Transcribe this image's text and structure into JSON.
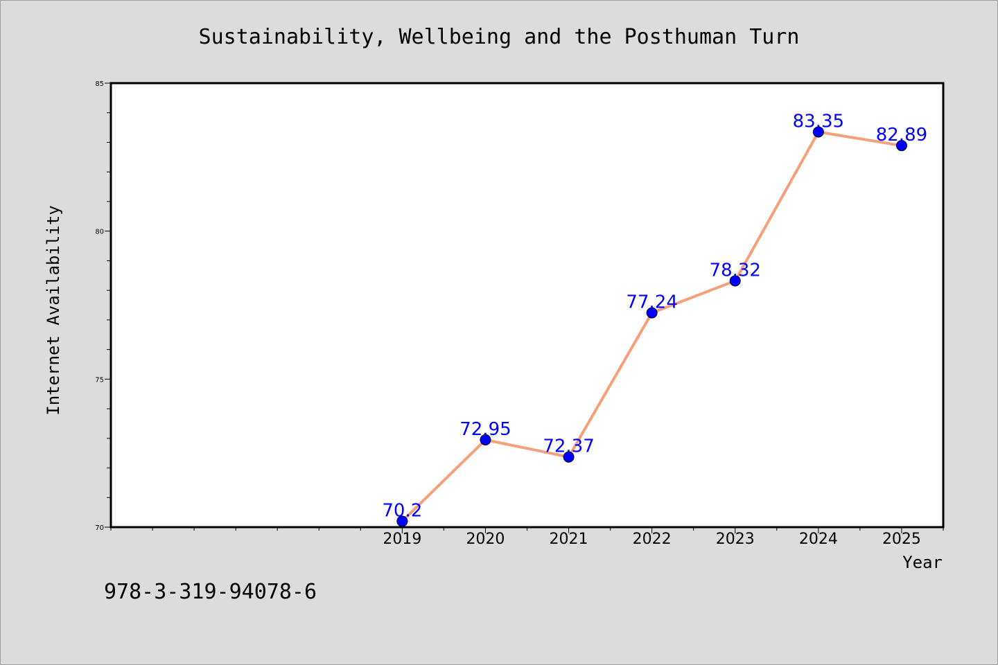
{
  "footer_text": "978-3-319-94078-6",
  "colors": {
    "background": "#dcdcdc",
    "plot_background": "#ffffff",
    "line": "#f5a07a",
    "marker": "#0000ff",
    "data_label": "#0000ff",
    "axis": "#000000"
  },
  "chart_data": {
    "type": "line",
    "title": "Sustainability, Wellbeing and the Posthuman Turn",
    "xlabel": "Year",
    "ylabel": "Internet Availability",
    "x": [
      2019,
      2020,
      2021,
      2022,
      2023,
      2024,
      2025
    ],
    "series": [
      {
        "values": [
          70.2,
          72.95,
          72.37,
          77.24,
          78.32,
          83.35,
          82.89
        ],
        "labels": [
          "70.2",
          "72.95",
          "72.37",
          "77.24",
          "78.32",
          "83.35",
          "82.89"
        ]
      }
    ],
    "xlim": [
      2015.5,
      2025.5
    ],
    "ylim": [
      70,
      85
    ],
    "y_ticks": [
      70,
      75,
      80,
      85
    ],
    "grid": false,
    "marker": "circle"
  }
}
